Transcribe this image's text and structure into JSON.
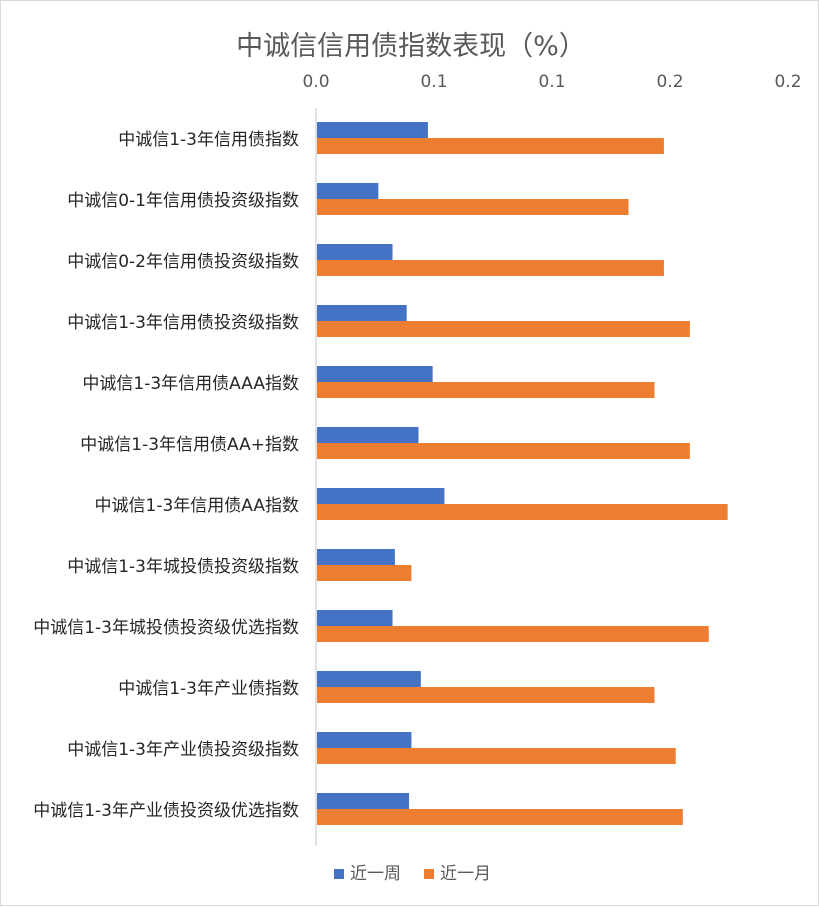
{
  "chart_data": {
    "type": "bar",
    "orientation": "horizontal",
    "title": "中诚信信用债指数表现（%）",
    "x_tick_labels": [
      "0.0",
      "0.1",
      "0.1",
      "0.2",
      "0.2"
    ],
    "xlim": [
      0,
      0.2
    ],
    "grid": false,
    "legend_position": "bottom",
    "categories": [
      "中诚信1-3年信用债指数",
      "中诚信0-1年信用债投资级指数",
      "中诚信0-2年信用债投资级指数",
      "中诚信1-3年信用债投资级指数",
      "中诚信1-3年信用债AAA指数",
      "中诚信1-3年信用债AA+指数",
      "中诚信1-3年信用债AA指数",
      "中诚信1-3年城投债投资级指数",
      "中诚信1-3年城投债投资级优选指数",
      "中诚信1-3年产业债指数",
      "中诚信1-3年产业债投资级指数",
      "中诚信1-3年产业债投资级优选指数"
    ],
    "series": [
      {
        "name": "近一周",
        "color": "#4472c4",
        "values": [
          0.047,
          0.026,
          0.032,
          0.038,
          0.049,
          0.043,
          0.054,
          0.033,
          0.032,
          0.044,
          0.04,
          0.039
        ]
      },
      {
        "name": "近一月",
        "color": "#ed7d31",
        "values": [
          0.147,
          0.132,
          0.147,
          0.158,
          0.143,
          0.158,
          0.174,
          0.04,
          0.166,
          0.143,
          0.152,
          0.155
        ]
      }
    ]
  }
}
